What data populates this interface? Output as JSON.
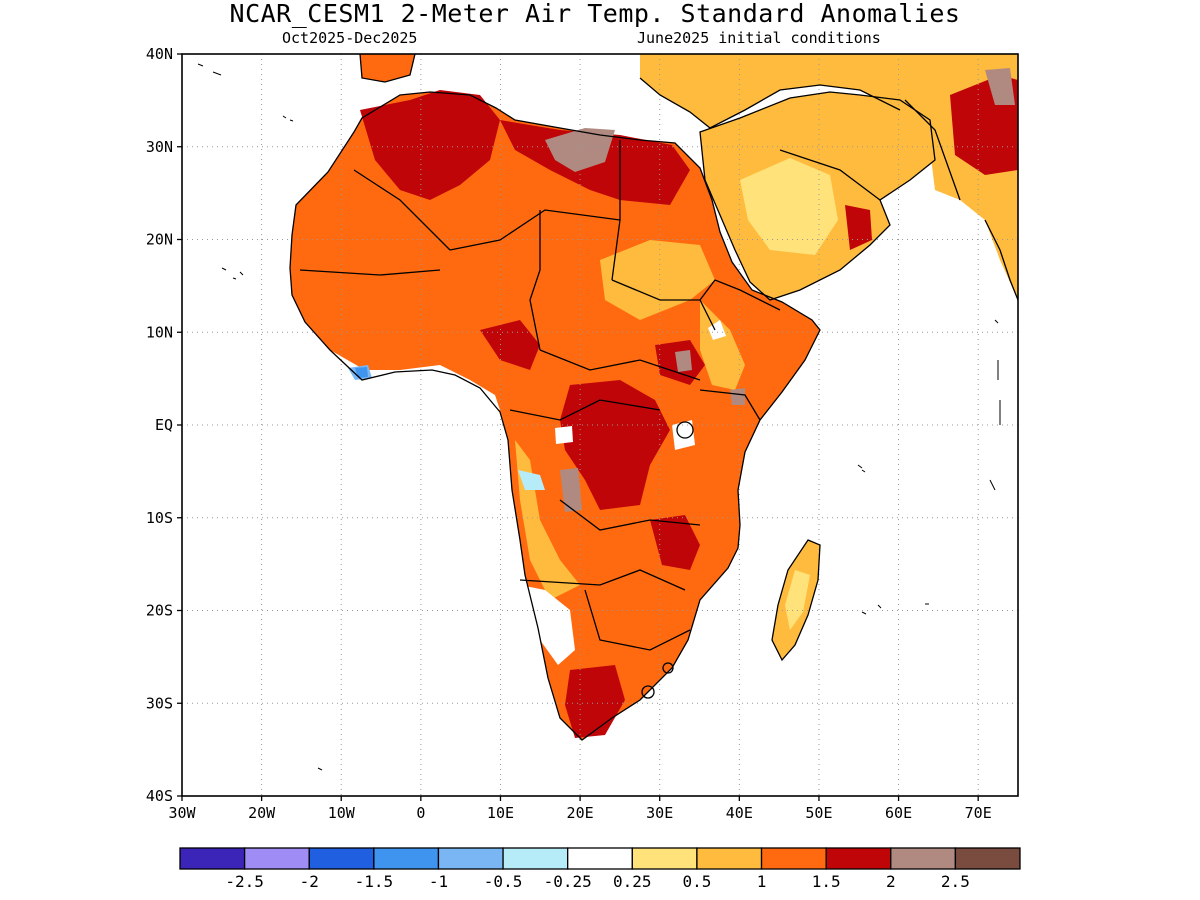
{
  "header": {
    "title": "NCAR_CESM1 2-Meter Air Temp. Standard Anomalies",
    "valid_period": "Oct2025-Dec2025",
    "init_conditions": "June2025 initial conditions"
  },
  "map": {
    "lat_labels": [
      "40N",
      "30N",
      "20N",
      "10N",
      "EQ",
      "10S",
      "20S",
      "30S",
      "40S"
    ],
    "lon_labels": [
      "30W",
      "20W",
      "10W",
      "0",
      "10E",
      "20E",
      "30E",
      "40E",
      "50E",
      "60E",
      "70E"
    ],
    "lat_range": [
      -40,
      40
    ],
    "lon_range": [
      -30,
      75
    ],
    "grid": "dotted"
  },
  "colorbar": {
    "colors": [
      "#3b24b8",
      "#9f8cf5",
      "#1f5fe0",
      "#3f94f0",
      "#7ab6f3",
      "#b6ecf8",
      "#ffffff",
      "#ffe27a",
      "#ffbb3e",
      "#ff6a10",
      "#c00509",
      "#b08a80",
      "#7a4b3f"
    ],
    "labels": [
      "-2.5",
      "-2",
      "-1.5",
      "-1",
      "-0.5",
      "-0.25",
      "0.25",
      "0.5",
      "1",
      "1.5",
      "2",
      "2.5"
    ]
  }
}
